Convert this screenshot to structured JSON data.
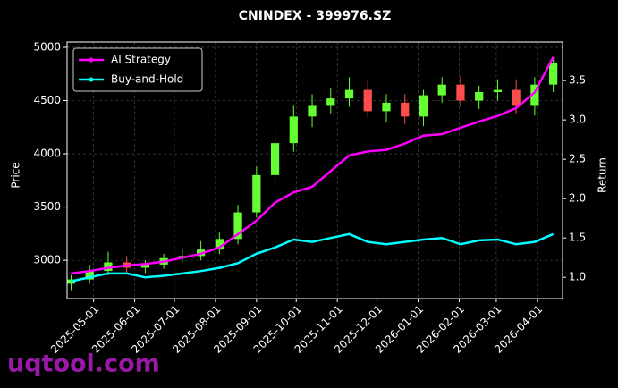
{
  "chart_data": {
    "type": "candlestick",
    "title": "CNINDEX - 399976.SZ",
    "watermark": "uqtool.com",
    "ylabel": "Price",
    "y2label": "Return",
    "up_color": "#66ff33",
    "down_color": "#ff4d4d",
    "grid": true,
    "legend": "upper left",
    "x": [
      "2025-04-14",
      "2025-04-28",
      "2025-05-12",
      "2025-05-26",
      "2025-06-09",
      "2025-06-23",
      "2025-07-07",
      "2025-07-21",
      "2025-08-04",
      "2025-08-18",
      "2025-09-01",
      "2025-09-15",
      "2025-09-29",
      "2025-10-13",
      "2025-10-27",
      "2025-11-10",
      "2025-11-24",
      "2025-12-08",
      "2025-12-22",
      "2026-01-05",
      "2026-01-19",
      "2026-02-02",
      "2026-02-16",
      "2026-03-02",
      "2026-03-16",
      "2026-03-30",
      "2026-04-13"
    ],
    "open": [
      2780,
      2820,
      2900,
      2980,
      2930,
      2960,
      3020,
      3040,
      3100,
      3200,
      3450,
      3800,
      4100,
      4350,
      4450,
      4520,
      4600,
      4400,
      4480,
      4350,
      4550,
      4650,
      4500,
      4580,
      4600,
      4450,
      4650
    ],
    "high": [
      2860,
      2960,
      3080,
      3040,
      3000,
      3060,
      3100,
      3180,
      3260,
      3520,
      3880,
      4200,
      4450,
      4560,
      4620,
      4720,
      4700,
      4560,
      4560,
      4600,
      4720,
      4730,
      4640,
      4700,
      4700,
      4720,
      4900
    ],
    "low": [
      2720,
      2780,
      2860,
      2880,
      2880,
      2920,
      2980,
      3000,
      3060,
      3150,
      3400,
      3700,
      4020,
      4250,
      4380,
      4440,
      4340,
      4300,
      4280,
      4260,
      4480,
      4440,
      4420,
      4500,
      4380,
      4360,
      4580
    ],
    "close": [
      2820,
      2900,
      2980,
      2930,
      2960,
      3020,
      3040,
      3100,
      3200,
      3450,
      3800,
      4100,
      4350,
      4450,
      4520,
      4600,
      4400,
      4480,
      4350,
      4550,
      4650,
      4500,
      4580,
      4600,
      4450,
      4650,
      4850
    ],
    "series": [
      {
        "name": "AI Strategy",
        "color": "#ff00ff",
        "axis": "y2",
        "values": [
          1.05,
          1.08,
          1.12,
          1.15,
          1.17,
          1.2,
          1.25,
          1.3,
          1.38,
          1.55,
          1.72,
          1.95,
          2.08,
          2.15,
          2.35,
          2.55,
          2.6,
          2.62,
          2.7,
          2.8,
          2.82,
          2.9,
          2.98,
          3.05,
          3.15,
          3.35,
          3.8
        ]
      },
      {
        "name": "Buy-and-Hold",
        "color": "#00ffff",
        "axis": "y2",
        "values": [
          0.95,
          1.0,
          1.05,
          1.05,
          1.0,
          1.02,
          1.05,
          1.08,
          1.12,
          1.18,
          1.3,
          1.38,
          1.48,
          1.45,
          1.5,
          1.55,
          1.45,
          1.42,
          1.45,
          1.48,
          1.5,
          1.42,
          1.47,
          1.48,
          1.42,
          1.45,
          1.55
        ]
      }
    ],
    "xlim": [
      "2025-04-11",
      "2026-04-20"
    ],
    "xticks": [
      "2025-05-01",
      "2025-06-01",
      "2025-07-01",
      "2025-08-01",
      "2025-09-01",
      "2025-10-01",
      "2025-11-01",
      "2025-12-01",
      "2026-01-01",
      "2026-02-01",
      "2026-03-01",
      "2026-04-01"
    ],
    "ylim": [
      2640,
      5050
    ],
    "yticks": [
      3000,
      3500,
      4000,
      4500,
      5000
    ],
    "y2lim": [
      0.73,
      3.99
    ],
    "y2ticks": [
      {
        "value": 1,
        "label": "1.0"
      },
      1.5,
      {
        "value": 2,
        "label": "2.0"
      },
      2.5,
      {
        "value": 3,
        "label": "3.0"
      },
      3.5
    ]
  }
}
